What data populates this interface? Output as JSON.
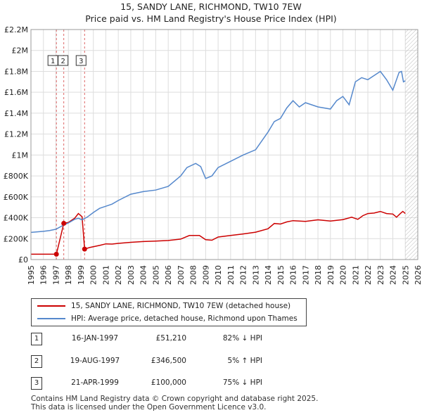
{
  "header": {
    "title": "15, SANDY LANE, RICHMOND, TW10 7EW",
    "subtitle": "Price paid vs. HM Land Registry's House Price Index (HPI)"
  },
  "chart_data": {
    "type": "line",
    "x_ticks": [
      "1995",
      "1996",
      "1997",
      "1998",
      "1999",
      "2000",
      "2001",
      "2002",
      "2003",
      "2004",
      "2005",
      "2006",
      "2007",
      "2008",
      "2009",
      "2010",
      "2011",
      "2012",
      "2013",
      "2014",
      "2015",
      "2016",
      "2017",
      "2018",
      "2019",
      "2020",
      "2021",
      "2022",
      "2023",
      "2024",
      "2025",
      "2026"
    ],
    "y_ticks": [
      "£0",
      "£200K",
      "£400K",
      "£600K",
      "£800K",
      "£1M",
      "£1.2M",
      "£1.4M",
      "£1.6M",
      "£1.8M",
      "£2M",
      "£2.2M"
    ],
    "xlim": [
      1995,
      2026
    ],
    "ylim": [
      0,
      2200000
    ],
    "hatched_after": 2025.0,
    "series": [
      {
        "name": "15, SANDY LANE, RICHMOND, TW10 7EW (detached house)",
        "color": "#cc0000",
        "points": [
          [
            1995.0,
            51000
          ],
          [
            1997.04,
            51210
          ],
          [
            1997.63,
            346500
          ],
          [
            1998.0,
            355000
          ],
          [
            1998.5,
            395000
          ],
          [
            1998.8,
            440000
          ],
          [
            1999.1,
            410000
          ],
          [
            1999.3,
            100000
          ],
          [
            1999.7,
            115000
          ],
          [
            2000.5,
            135000
          ],
          [
            2001.0,
            150000
          ],
          [
            2001.5,
            148000
          ],
          [
            2002.0,
            155000
          ],
          [
            2003.0,
            165000
          ],
          [
            2004.0,
            172000
          ],
          [
            2005.0,
            176000
          ],
          [
            2006.0,
            182000
          ],
          [
            2007.0,
            196000
          ],
          [
            2007.7,
            230000
          ],
          [
            2008.5,
            230000
          ],
          [
            2009.0,
            190000
          ],
          [
            2009.5,
            185000
          ],
          [
            2010.0,
            215000
          ],
          [
            2011.0,
            230000
          ],
          [
            2012.0,
            245000
          ],
          [
            2013.0,
            262000
          ],
          [
            2014.0,
            295000
          ],
          [
            2014.5,
            345000
          ],
          [
            2015.0,
            340000
          ],
          [
            2015.5,
            360000
          ],
          [
            2016.0,
            372000
          ],
          [
            2017.0,
            365000
          ],
          [
            2018.0,
            380000
          ],
          [
            2019.0,
            368000
          ],
          [
            2020.0,
            382000
          ],
          [
            2020.7,
            405000
          ],
          [
            2021.2,
            385000
          ],
          [
            2021.6,
            420000
          ],
          [
            2022.0,
            440000
          ],
          [
            2022.5,
            445000
          ],
          [
            2023.0,
            460000
          ],
          [
            2023.5,
            440000
          ],
          [
            2024.0,
            435000
          ],
          [
            2024.3,
            405000
          ],
          [
            2024.6,
            440000
          ],
          [
            2024.8,
            460000
          ],
          [
            2025.0,
            440000
          ]
        ]
      },
      {
        "name": "HPI: Average price, detached house, Richmond upon Thames",
        "color": "#5588cc",
        "points": [
          [
            1995.0,
            260000
          ],
          [
            1995.5,
            265000
          ],
          [
            1996.0,
            270000
          ],
          [
            1996.5,
            278000
          ],
          [
            1997.0,
            290000
          ],
          [
            1997.5,
            322000
          ],
          [
            1998.0,
            350000
          ],
          [
            1998.5,
            385000
          ],
          [
            1998.8,
            395000
          ],
          [
            1999.1,
            380000
          ],
          [
            1999.5,
            405000
          ],
          [
            2000.0,
            450000
          ],
          [
            2000.5,
            490000
          ],
          [
            2001.0,
            510000
          ],
          [
            2001.5,
            530000
          ],
          [
            2002.0,
            565000
          ],
          [
            2003.0,
            625000
          ],
          [
            2004.0,
            650000
          ],
          [
            2005.0,
            665000
          ],
          [
            2006.0,
            700000
          ],
          [
            2007.0,
            800000
          ],
          [
            2007.5,
            880000
          ],
          [
            2008.2,
            920000
          ],
          [
            2008.6,
            890000
          ],
          [
            2009.0,
            775000
          ],
          [
            2009.5,
            800000
          ],
          [
            2010.0,
            880000
          ],
          [
            2011.0,
            940000
          ],
          [
            2012.0,
            1000000
          ],
          [
            2013.0,
            1050000
          ],
          [
            2014.0,
            1220000
          ],
          [
            2014.5,
            1320000
          ],
          [
            2015.0,
            1350000
          ],
          [
            2015.5,
            1450000
          ],
          [
            2016.0,
            1520000
          ],
          [
            2016.5,
            1460000
          ],
          [
            2017.0,
            1500000
          ],
          [
            2018.0,
            1460000
          ],
          [
            2019.0,
            1440000
          ],
          [
            2019.5,
            1520000
          ],
          [
            2020.0,
            1560000
          ],
          [
            2020.5,
            1480000
          ],
          [
            2021.0,
            1700000
          ],
          [
            2021.5,
            1740000
          ],
          [
            2022.0,
            1720000
          ],
          [
            2022.5,
            1760000
          ],
          [
            2023.0,
            1800000
          ],
          [
            2023.5,
            1720000
          ],
          [
            2024.0,
            1620000
          ],
          [
            2024.5,
            1790000
          ],
          [
            2024.7,
            1800000
          ],
          [
            2024.85,
            1700000
          ],
          [
            2025.0,
            1710000
          ]
        ]
      }
    ],
    "markers": [
      {
        "label": "1",
        "year": 1997.04,
        "price": 51210
      },
      {
        "label": "2",
        "year": 1997.63,
        "price": 346500
      },
      {
        "label": "3",
        "year": 1999.3,
        "price": 100000
      }
    ]
  },
  "legend": {
    "property": "15, SANDY LANE, RICHMOND, TW10 7EW (detached house)",
    "hpi": "HPI: Average price, detached house, Richmond upon Thames"
  },
  "transactions": [
    {
      "num": "1",
      "date": "16-JAN-1997",
      "price": "£51,210",
      "hpi": "82% ↓ HPI"
    },
    {
      "num": "2",
      "date": "19-AUG-1997",
      "price": "£346,500",
      "hpi": "5% ↑ HPI"
    },
    {
      "num": "3",
      "date": "21-APR-1999",
      "price": "£100,000",
      "hpi": "75% ↓ HPI"
    }
  ],
  "footer": {
    "line1": "Contains HM Land Registry data © Crown copyright and database right 2025.",
    "line2": "This data is licensed under the Open Government Licence v3.0."
  }
}
